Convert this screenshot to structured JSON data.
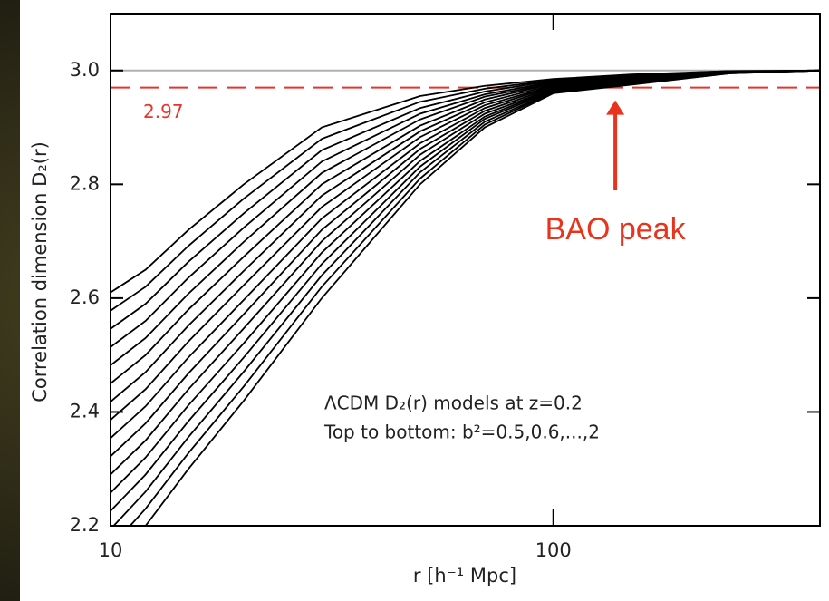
{
  "chart_data": {
    "type": "line",
    "x_label": "r [h⁻¹ Mpc]",
    "y_label": "Correlation dimension D₂(r)",
    "x": [
      10,
      12,
      15,
      20,
      30,
      50,
      70,
      100,
      150,
      250,
      400
    ],
    "log_x": true,
    "xlim": [
      10,
      400
    ],
    "xticks": [
      10,
      100
    ],
    "ylim": [
      2.2,
      3.1
    ],
    "yticks": [
      2.2,
      2.4,
      2.6,
      2.8,
      {
        "value": 3.0,
        "label": "3.0"
      }
    ],
    "color": "#000000",
    "series": [
      {
        "values": [
          2.61,
          2.65,
          2.72,
          2.8,
          2.9,
          2.955,
          2.973,
          2.985,
          2.993,
          2.999,
          3
        ]
      },
      {
        "values": [
          2.578,
          2.62,
          2.692,
          2.775,
          2.88,
          2.945,
          2.968,
          2.983,
          2.992,
          2.999,
          3
        ]
      },
      {
        "values": [
          2.546,
          2.59,
          2.664,
          2.749,
          2.86,
          2.934,
          2.963,
          2.982,
          2.991,
          2.998,
          3
        ]
      },
      {
        "values": [
          2.514,
          2.56,
          2.636,
          2.724,
          2.84,
          2.924,
          2.958,
          2.98,
          2.989,
          2.998,
          3
        ]
      },
      {
        "values": [
          2.482,
          2.53,
          2.608,
          2.699,
          2.82,
          2.914,
          2.954,
          2.978,
          2.988,
          2.998,
          3
        ]
      },
      {
        "values": [
          2.45,
          2.5,
          2.58,
          2.673,
          2.8,
          2.903,
          2.949,
          2.977,
          2.987,
          2.998,
          3
        ]
      },
      {
        "values": [
          2.418,
          2.47,
          2.552,
          2.648,
          2.78,
          2.893,
          2.944,
          2.975,
          2.986,
          2.997,
          3
        ]
      },
      {
        "values": [
          2.386,
          2.44,
          2.524,
          2.623,
          2.76,
          2.883,
          2.939,
          2.973,
          2.985,
          2.997,
          3
        ]
      },
      {
        "values": [
          2.354,
          2.41,
          2.496,
          2.597,
          2.74,
          2.872,
          2.934,
          2.972,
          2.983,
          2.997,
          3
        ]
      },
      {
        "values": [
          2.322,
          2.38,
          2.468,
          2.572,
          2.72,
          2.862,
          2.929,
          2.97,
          2.982,
          2.997,
          3
        ]
      },
      {
        "values": [
          2.29,
          2.35,
          2.44,
          2.547,
          2.7,
          2.852,
          2.924,
          2.968,
          2.981,
          2.996,
          3
        ]
      },
      {
        "values": [
          2.258,
          2.32,
          2.412,
          2.521,
          2.68,
          2.841,
          2.919,
          2.967,
          2.98,
          2.996,
          3
        ]
      },
      {
        "values": [
          2.226,
          2.29,
          2.384,
          2.496,
          2.66,
          2.831,
          2.915,
          2.965,
          2.979,
          2.996,
          3
        ]
      },
      {
        "values": [
          2.194,
          2.26,
          2.356,
          2.471,
          2.64,
          2.821,
          2.91,
          2.963,
          2.977,
          2.996,
          3
        ]
      },
      {
        "values": [
          2.162,
          2.23,
          2.328,
          2.445,
          2.62,
          2.81,
          2.905,
          2.962,
          2.976,
          2.995,
          3
        ]
      },
      {
        "values": [
          2.13,
          2.2,
          2.3,
          2.42,
          2.6,
          2.8,
          2.9,
          2.96,
          2.975,
          2.995,
          3
        ]
      }
    ],
    "reference_lines": [
      {
        "value": 3,
        "color": "#b0b0b0",
        "dashed": false
      },
      {
        "value": 2.97,
        "color": "#e8342a",
        "dashed": true,
        "label": "2.97"
      }
    ],
    "annotations": [
      {
        "text": "BAO peak",
        "x": 138,
        "color": "#e8341c"
      }
    ],
    "notes": [
      "ΛCDM D₂(r) models at z=0.2",
      "Top to bottom: b²=0.5,0.6,...,2"
    ]
  }
}
